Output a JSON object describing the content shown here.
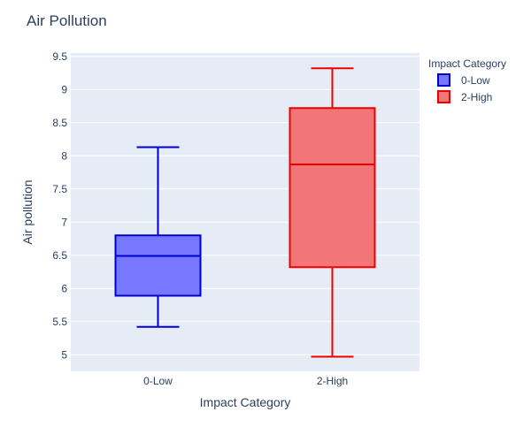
{
  "chart_data": {
    "type": "box",
    "title": "Air Pollution",
    "xlabel": "Impact Category",
    "ylabel": "Air pollution",
    "ylim": [
      4.75,
      9.55
    ],
    "yticks": [
      "5",
      "5.5",
      "6",
      "6.5",
      "7",
      "7.5",
      "8",
      "8.5",
      "9",
      "9.5"
    ],
    "categories": [
      "0-Low",
      "2-High"
    ],
    "legend": {
      "title": "Impact Category",
      "placement": "top-right"
    },
    "grid": true,
    "series": [
      {
        "name": "0-Low",
        "color": "#0000cc",
        "fill": "#7777ff",
        "min": 5.42,
        "q1": 5.89,
        "median": 6.49,
        "q3": 6.8,
        "max": 8.13
      },
      {
        "name": "2-High",
        "color": "#ee0000",
        "fill": "#f27677",
        "min": 4.97,
        "q1": 6.32,
        "median": 7.87,
        "q3": 8.72,
        "max": 9.32
      }
    ]
  }
}
